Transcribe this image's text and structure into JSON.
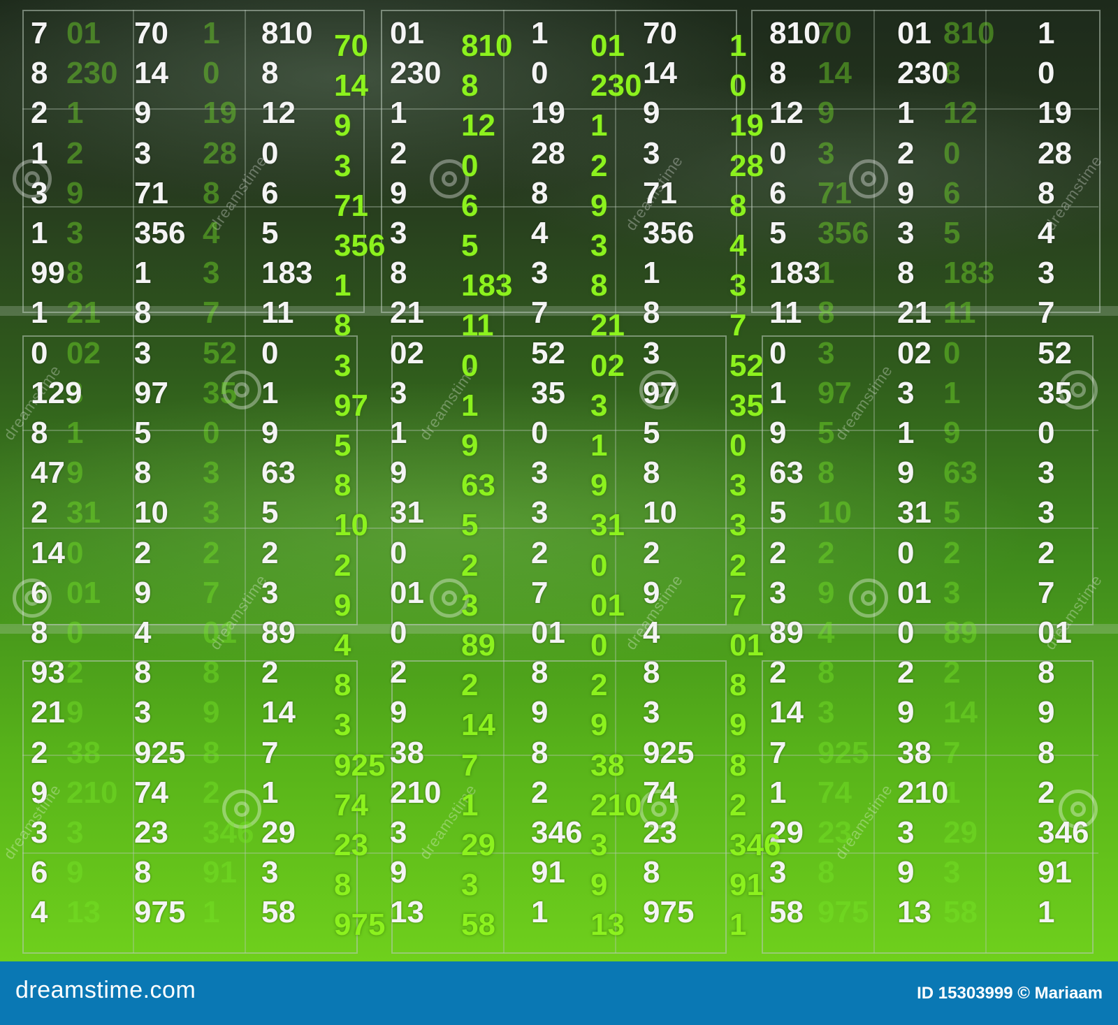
{
  "footer": {
    "logo_text": "dreamstime.com",
    "id_text": "ID 15303999 © Mariaam"
  },
  "watermark_text": "dreamstime",
  "colors": {
    "footer_bg": "#0a78b4",
    "white_digits": "#f4f4f4",
    "green_digits": "#8cf21e"
  },
  "white_columns": [
    [
      "7",
      "8",
      "2",
      "1",
      "3",
      "1",
      "99",
      "1",
      "0",
      "129",
      "8",
      "47",
      "2",
      "14",
      "6",
      "8",
      "93",
      "21",
      "2",
      "9",
      "3",
      "6",
      "4"
    ],
    [
      "70",
      "14",
      "9",
      "3",
      "71",
      "356",
      "1",
      "8",
      "3",
      "97",
      "5",
      "8",
      "10",
      "2",
      "9",
      "4",
      "8",
      "3",
      "925",
      "74",
      "23",
      "8",
      "975"
    ],
    [
      "810",
      "8",
      "12",
      "0",
      "6",
      "5",
      "183",
      "11",
      "0",
      "1",
      "9",
      "63",
      "5",
      "2",
      "3",
      "89",
      "2",
      "14",
      "7",
      "1",
      "29",
      "3",
      "58"
    ],
    [
      "01",
      "230",
      "1",
      "2",
      "9",
      "3",
      "8",
      "21",
      "02",
      "3",
      "1",
      "9",
      "31",
      "0",
      "01",
      "0",
      "2",
      "9",
      "38",
      "210",
      "3",
      "9",
      "13"
    ],
    [
      "1",
      "0",
      "19",
      "28",
      "8",
      "4",
      "3",
      "7",
      "52",
      "35",
      "0",
      "3",
      "3",
      "2",
      "7",
      "01",
      "8",
      "9",
      "8",
      "2",
      "346",
      "91",
      "1"
    ],
    [
      "70",
      "14",
      "9",
      "3",
      "71",
      "356",
      "1",
      "8",
      "3",
      "97",
      "5",
      "8",
      "10",
      "2",
      "9",
      "4",
      "8",
      "3",
      "925",
      "74",
      "23",
      "8",
      "975"
    ],
    [
      "810",
      "8",
      "12",
      "0",
      "6",
      "5",
      "183",
      "11",
      "0",
      "1",
      "9",
      "63",
      "5",
      "2",
      "3",
      "89",
      "2",
      "14",
      "7",
      "1",
      "29",
      "3",
      "58"
    ],
    [
      "01",
      "230",
      "1",
      "2",
      "9",
      "3",
      "8",
      "21",
      "02",
      "3",
      "1",
      "9",
      "31",
      "0",
      "01",
      "0",
      "2",
      "9",
      "38",
      "210",
      "3",
      "9",
      "13"
    ],
    [
      "1",
      "0",
      "19",
      "28",
      "8",
      "4",
      "3",
      "7",
      "52",
      "35",
      "0",
      "3",
      "3",
      "2",
      "7",
      "01",
      "8",
      "9",
      "8",
      "2",
      "346",
      "91",
      "1"
    ]
  ],
  "green_columns": [
    [
      "70",
      "14",
      "9",
      "3",
      "71",
      "356",
      "1",
      "8",
      "3",
      "97",
      "5",
      "8",
      "10",
      "2",
      "9",
      "4",
      "8",
      "3",
      "925",
      "74",
      "23",
      "8",
      "975"
    ],
    [
      "810",
      "8",
      "12",
      "0",
      "6",
      "5",
      "183",
      "11",
      "0",
      "1",
      "9",
      "63",
      "5",
      "2",
      "3",
      "89",
      "2",
      "14",
      "7",
      "1",
      "29",
      "3",
      "58"
    ],
    [
      "01",
      "230",
      "1",
      "2",
      "9",
      "3",
      "8",
      "21",
      "02",
      "3",
      "1",
      "9",
      "31",
      "0",
      "01",
      "0",
      "2",
      "9",
      "38",
      "210",
      "3",
      "9",
      "13"
    ],
    [
      "1",
      "0",
      "19",
      "28",
      "8",
      "4",
      "3",
      "7",
      "52",
      "35",
      "0",
      "3",
      "3",
      "2",
      "7",
      "01",
      "8",
      "9",
      "8",
      "2",
      "346",
      "91",
      "1"
    ]
  ],
  "faint_columns": [
    [
      "01",
      "230",
      "1",
      "2",
      "9",
      "3",
      "8",
      "21",
      "02",
      "3",
      "1",
      "9",
      "31",
      "0",
      "01",
      "0",
      "2",
      "9",
      "38",
      "210",
      "3",
      "9",
      "13"
    ],
    [
      "1",
      "0",
      "19",
      "28",
      "8",
      "4",
      "3",
      "7",
      "52",
      "35",
      "0",
      "3",
      "3",
      "2",
      "7",
      "01",
      "8",
      "9",
      "8",
      "2",
      "346",
      "91",
      "1"
    ],
    [
      "70",
      "14",
      "9",
      "3",
      "71",
      "356",
      "1",
      "8",
      "3",
      "97",
      "5",
      "8",
      "10",
      "2",
      "9",
      "4",
      "8",
      "3",
      "925",
      "74",
      "23",
      "8",
      "975"
    ],
    [
      "810",
      "8",
      "12",
      "0",
      "6",
      "5",
      "183",
      "11",
      "0",
      "1",
      "9",
      "63",
      "5",
      "2",
      "3",
      "89",
      "2",
      "14",
      "7",
      "1",
      "29",
      "3",
      "58"
    ]
  ]
}
